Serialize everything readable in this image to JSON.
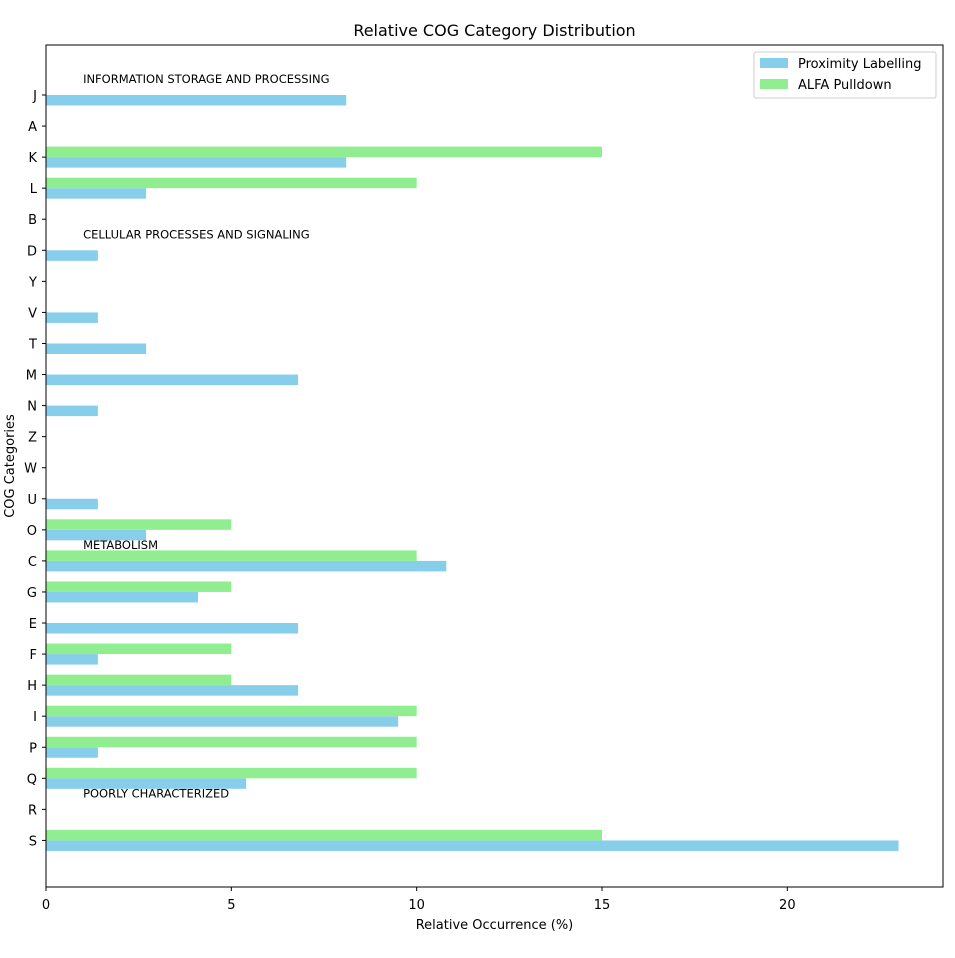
{
  "chart_data": {
    "type": "bar",
    "orientation": "horizontal",
    "title": "Relative COG Category Distribution",
    "xlabel": "Relative Occurrence (%)",
    "ylabel": "COG Categories",
    "xlim": [
      0,
      24.2
    ],
    "xticks": [
      0,
      5,
      10,
      15,
      20
    ],
    "grid": false,
    "legend_position": "top-right",
    "categories": [
      "J",
      "A",
      "K",
      "L",
      "B",
      "D",
      "Y",
      "V",
      "T",
      "M",
      "N",
      "Z",
      "W",
      "U",
      "O",
      "C",
      "G",
      "E",
      "F",
      "H",
      "I",
      "P",
      "Q",
      "R",
      "S"
    ],
    "series": [
      {
        "name": "Proximity Labelling",
        "color": "#87ceeb",
        "values": [
          8.1,
          0,
          8.1,
          2.7,
          0,
          1.4,
          0,
          1.4,
          2.7,
          6.8,
          1.4,
          0,
          0,
          1.4,
          2.7,
          10.8,
          4.1,
          6.8,
          1.4,
          6.8,
          9.5,
          1.4,
          5.4,
          0,
          23.0
        ]
      },
      {
        "name": "ALFA Pulldown",
        "color": "#90ee90",
        "values": [
          0,
          0,
          15,
          10,
          0,
          0,
          0,
          0,
          0,
          0,
          0,
          0,
          0,
          0,
          5,
          10,
          5,
          0,
          5,
          5,
          10,
          10,
          10,
          0,
          15
        ]
      }
    ],
    "group_annotations": [
      {
        "text": "INFORMATION STORAGE AND PROCESSING",
        "category": "J"
      },
      {
        "text": "CELLULAR PROCESSES AND SIGNALING",
        "category": "D"
      },
      {
        "text": "METABOLISM",
        "category": "C"
      },
      {
        "text": "POORLY CHARACTERIZED",
        "category": "R"
      }
    ]
  }
}
